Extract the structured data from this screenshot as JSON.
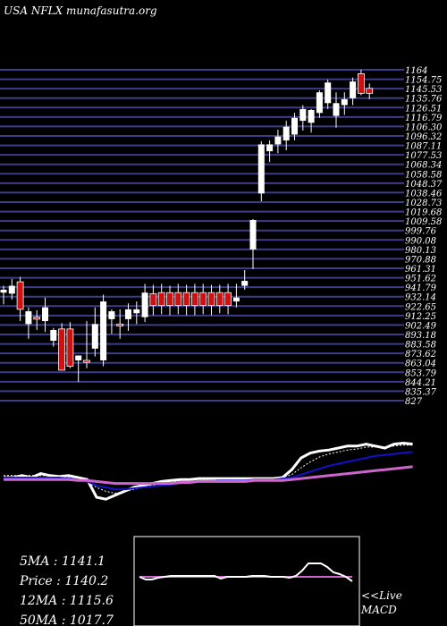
{
  "header": {
    "title": "USA NFLX munafasutra.org"
  },
  "colors": {
    "background": "#000000",
    "band_line": "#3c3c8a",
    "up_candle": "#ffffff",
    "down_candle": "#cc1111",
    "price_line": "#ffffff",
    "ma12_line": "#1111cc",
    "ma50_line": "#cc66cc",
    "macd_line": "#ffffff",
    "macd_signal": "#cc66cc",
    "macd_box": "#ffffff"
  },
  "stats": {
    "ma5": "5MA : 1141.1",
    "price": "Price   : 1140.2",
    "ma12": "12MA : 1115.6",
    "ma50": "50MA : 1017.7"
  },
  "macd_label": {
    "line1": "<<Live",
    "line2": "MACD"
  },
  "chart_data": {
    "type": "candlestick",
    "title": "USA NFLX munafasutra.org",
    "ylim": [
      827,
      1164
    ],
    "grid": true,
    "top_price_label": "1164",
    "price_labels": [
      "1164",
      "1154.75",
      "1145.53",
      "1135.76",
      "1126.51",
      "1116.79",
      "1106.30",
      "1096.32",
      "1087.11",
      "1077.53",
      "1068.34",
      "1058.58",
      "1048.37",
      "1038.46",
      "1028.73",
      "1019.68",
      "1009.58",
      "999.76",
      "990.08",
      "980.13",
      "970.88",
      "961.31",
      "951.62",
      "941.79",
      "932.14",
      "922.65",
      "912.25",
      "902.49",
      "893.18",
      "883.58",
      "873.62",
      "863.04",
      "853.79",
      "844.21",
      "835.37",
      "827"
    ],
    "candles": [
      {
        "o": 937,
        "h": 944,
        "l": 925,
        "c": 940
      },
      {
        "o": 936,
        "h": 951,
        "l": 930,
        "c": 944
      },
      {
        "o": 948,
        "h": 953,
        "l": 908,
        "c": 920
      },
      {
        "o": 905,
        "h": 922,
        "l": 890,
        "c": 918
      },
      {
        "o": 912,
        "h": 919,
        "l": 899,
        "c": 910
      },
      {
        "o": 908,
        "h": 932,
        "l": 897,
        "c": 922
      },
      {
        "o": 888,
        "h": 901,
        "l": 882,
        "c": 899
      },
      {
        "o": 900,
        "h": 906,
        "l": 858,
        "c": 858
      },
      {
        "o": 900,
        "h": 907,
        "l": 860,
        "c": 862
      },
      {
        "o": 868,
        "h": 873,
        "l": 846,
        "c": 873
      },
      {
        "o": 868,
        "h": 908,
        "l": 860,
        "c": 866
      },
      {
        "o": 880,
        "h": 922,
        "l": 872,
        "c": 905
      },
      {
        "o": 868,
        "h": 935,
        "l": 862,
        "c": 928
      },
      {
        "o": 910,
        "h": 920,
        "l": 895,
        "c": 918
      },
      {
        "o": 905,
        "h": 920,
        "l": 890,
        "c": 903
      },
      {
        "o": 910,
        "h": 926,
        "l": 898,
        "c": 920
      },
      {
        "o": 916,
        "h": 928,
        "l": 905,
        "c": 920
      },
      {
        "o": 912,
        "h": 946,
        "l": 907,
        "c": 937
      },
      {
        "o": 936,
        "h": 945,
        "l": 914,
        "c": 924
      },
      {
        "o": 937,
        "h": 946,
        "l": 915,
        "c": 924
      },
      {
        "o": 937,
        "h": 944,
        "l": 914,
        "c": 924
      },
      {
        "o": 937,
        "h": 946,
        "l": 915,
        "c": 924
      },
      {
        "o": 937,
        "h": 945,
        "l": 914,
        "c": 924
      },
      {
        "o": 937,
        "h": 946,
        "l": 914,
        "c": 924
      },
      {
        "o": 937,
        "h": 946,
        "l": 915,
        "c": 924
      },
      {
        "o": 937,
        "h": 945,
        "l": 914,
        "c": 924
      },
      {
        "o": 937,
        "h": 945,
        "l": 916,
        "c": 924
      },
      {
        "o": 937,
        "h": 946,
        "l": 915,
        "c": 924
      },
      {
        "o": 928,
        "h": 946,
        "l": 922,
        "c": 932
      },
      {
        "o": 944,
        "h": 960,
        "l": 940,
        "c": 949
      },
      {
        "o": 981,
        "h": 1012,
        "l": 961,
        "c": 1011
      },
      {
        "o": 1038,
        "h": 1091,
        "l": 1030,
        "c": 1088
      },
      {
        "o": 1081,
        "h": 1092,
        "l": 1070,
        "c": 1088
      },
      {
        "o": 1088,
        "h": 1103,
        "l": 1079,
        "c": 1096
      },
      {
        "o": 1092,
        "h": 1112,
        "l": 1082,
        "c": 1106
      },
      {
        "o": 1098,
        "h": 1120,
        "l": 1092,
        "c": 1115
      },
      {
        "o": 1112,
        "h": 1128,
        "l": 1102,
        "c": 1124
      },
      {
        "o": 1110,
        "h": 1124,
        "l": 1100,
        "c": 1123
      },
      {
        "o": 1120,
        "h": 1143,
        "l": 1115,
        "c": 1141
      },
      {
        "o": 1130,
        "h": 1154,
        "l": 1124,
        "c": 1151
      },
      {
        "o": 1117,
        "h": 1141,
        "l": 1105,
        "c": 1130
      },
      {
        "o": 1128,
        "h": 1141,
        "l": 1118,
        "c": 1134
      },
      {
        "o": 1135,
        "h": 1156,
        "l": 1128,
        "c": 1152
      },
      {
        "o": 1160,
        "h": 1164,
        "l": 1138,
        "c": 1140
      },
      {
        "o": 1145,
        "h": 1150,
        "l": 1134,
        "c": 1140
      }
    ],
    "indicator_panel": {
      "ylim": [
        0,
        100
      ],
      "series": [
        {
          "key": "price",
          "values": [
            60,
            60,
            62,
            60,
            64,
            62,
            61,
            62,
            60,
            58,
            40,
            38,
            42,
            46,
            50,
            52,
            54,
            56,
            57,
            58,
            58,
            59,
            59,
            59,
            59,
            59,
            59,
            59,
            59,
            59,
            60,
            68,
            80,
            85,
            87,
            88,
            90,
            92,
            92,
            94,
            92,
            90,
            94,
            95,
            94
          ]
        },
        {
          "key": "ma5",
          "values": [
            62,
            62,
            62,
            62,
            62,
            62,
            61,
            60,
            58,
            56,
            50,
            46,
            44,
            46,
            48,
            50,
            52,
            54,
            55,
            57,
            58,
            58,
            58,
            59,
            59,
            59,
            59,
            59,
            59,
            59,
            60,
            63,
            70,
            76,
            81,
            84,
            86,
            88,
            89,
            91,
            91,
            91,
            92,
            93,
            93
          ]
        },
        {
          "key": "ma12",
          "values": [
            60,
            60,
            60,
            60,
            60,
            60,
            60,
            59,
            58,
            56,
            52,
            50,
            48,
            48,
            49,
            50,
            51,
            52,
            53,
            54,
            55,
            56,
            56,
            57,
            57,
            57,
            57,
            58,
            58,
            58,
            59,
            60,
            63,
            66,
            69,
            72,
            74,
            76,
            78,
            80,
            82,
            83,
            84,
            85,
            86
          ]
        },
        {
          "key": "ma50",
          "values": [
            58,
            58,
            58,
            58,
            58,
            58,
            58,
            58,
            57,
            57,
            56,
            55,
            54,
            54,
            54,
            54,
            54,
            54,
            54,
            55,
            55,
            56,
            56,
            56,
            56,
            56,
            56,
            57,
            57,
            57,
            57,
            58,
            59,
            60,
            61,
            62,
            63,
            64,
            65,
            66,
            67,
            68,
            69,
            70,
            71
          ]
        }
      ]
    },
    "macd": {
      "values": [
        55,
        52,
        52,
        54,
        55,
        56,
        56,
        56,
        56,
        56,
        56,
        56,
        56,
        53,
        55,
        55,
        55,
        55,
        56,
        56,
        56,
        55,
        55,
        55,
        54,
        56,
        62,
        70,
        70,
        70,
        66,
        60,
        58,
        55,
        50
      ],
      "signal": [
        55,
        55,
        55,
        55,
        55,
        55,
        55,
        55,
        55,
        55,
        55,
        55,
        55,
        55,
        55,
        55,
        55,
        55,
        55,
        55,
        55,
        55,
        55,
        55,
        55,
        55,
        55,
        55,
        55,
        55,
        55,
        55,
        55,
        55,
        55
      ]
    }
  }
}
